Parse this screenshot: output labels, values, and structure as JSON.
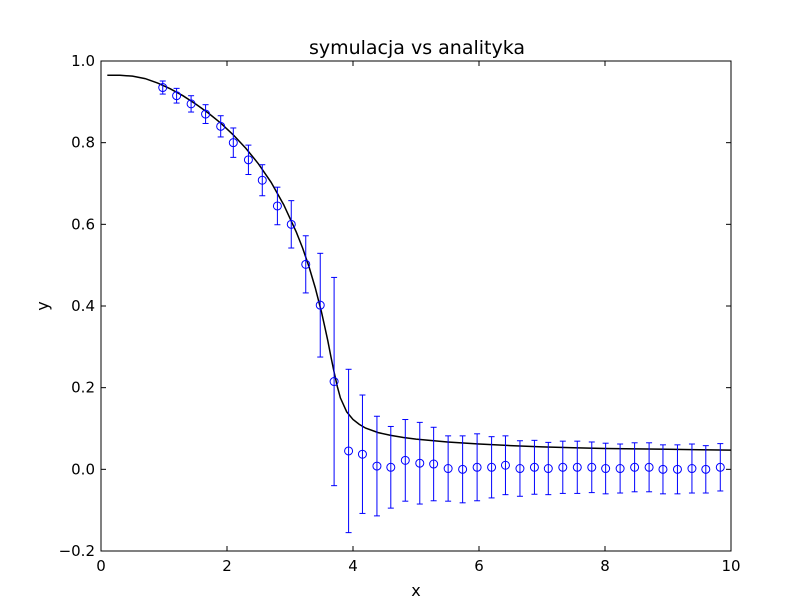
{
  "chart_data": {
    "type": "scatter",
    "title": "symulacja vs analityka",
    "xlabel": "x",
    "ylabel": "y",
    "xlim": [
      0,
      10
    ],
    "ylim": [
      -0.2,
      1.0
    ],
    "x_ticks": [
      0,
      2,
      4,
      6,
      8,
      10
    ],
    "x_tick_labels": [
      "0",
      "2",
      "4",
      "6",
      "8",
      "10"
    ],
    "y_ticks": [
      -0.2,
      0.0,
      0.2,
      0.4,
      0.6,
      0.8,
      1.0
    ],
    "y_tick_labels": [
      "−0.2",
      "0.0",
      "0.2",
      "0.4",
      "0.6",
      "0.8",
      "1.0"
    ],
    "grid": false,
    "legend": "none",
    "colors": {
      "simulation": "#0000ff",
      "analytic": "#000000"
    },
    "series": [
      {
        "kind": "line",
        "x": [
          0.1,
          0.3,
          0.5,
          0.7,
          0.9,
          1.1,
          1.3,
          1.5,
          1.7,
          1.9,
          2.1,
          2.3,
          2.5,
          2.7,
          2.9,
          3.1,
          3.2,
          3.3,
          3.4,
          3.5,
          3.55,
          3.6,
          3.65,
          3.7,
          3.75,
          3.8,
          3.9,
          4.0,
          4.1,
          4.2,
          4.4,
          4.6,
          4.8,
          5.0,
          5.5,
          6.0,
          6.5,
          7.0,
          7.5,
          8.0,
          8.5,
          9.0,
          9.5,
          10.0
        ],
        "y": [
          0.965,
          0.965,
          0.963,
          0.957,
          0.946,
          0.932,
          0.915,
          0.895,
          0.873,
          0.848,
          0.819,
          0.786,
          0.748,
          0.703,
          0.648,
          0.581,
          0.542,
          0.497,
          0.445,
          0.385,
          0.351,
          0.315,
          0.276,
          0.238,
          0.203,
          0.175,
          0.141,
          0.122,
          0.11,
          0.101,
          0.09,
          0.083,
          0.078,
          0.074,
          0.067,
          0.062,
          0.058,
          0.055,
          0.053,
          0.051,
          0.05,
          0.049,
          0.048,
          0.047
        ]
      },
      {
        "kind": "errorbar",
        "x": [
          0.98,
          1.2,
          1.43,
          1.66,
          1.9,
          2.1,
          2.34,
          2.56,
          2.8,
          3.02,
          3.25,
          3.48,
          3.7,
          3.93,
          4.15,
          4.38,
          4.6,
          4.83,
          5.06,
          5.28,
          5.51,
          5.74,
          5.97,
          6.2,
          6.42,
          6.65,
          6.88,
          7.1,
          7.33,
          7.56,
          7.79,
          8.01,
          8.24,
          8.47,
          8.7,
          8.92,
          9.15,
          9.38,
          9.6,
          9.83
        ],
        "y": [
          0.935,
          0.915,
          0.895,
          0.87,
          0.84,
          0.8,
          0.758,
          0.708,
          0.645,
          0.6,
          0.502,
          0.402,
          0.215,
          0.045,
          0.037,
          0.008,
          0.005,
          0.022,
          0.015,
          0.013,
          0.002,
          0.0,
          0.005,
          0.005,
          0.01,
          0.002,
          0.005,
          0.002,
          0.005,
          0.005,
          0.005,
          0.002,
          0.002,
          0.005,
          0.005,
          0.0,
          0.0,
          0.002,
          0.0,
          0.005
        ],
        "yerr": [
          0.016,
          0.018,
          0.02,
          0.023,
          0.026,
          0.036,
          0.036,
          0.038,
          0.046,
          0.058,
          0.07,
          0.127,
          0.255,
          0.2,
          0.145,
          0.122,
          0.1,
          0.1,
          0.1,
          0.09,
          0.08,
          0.082,
          0.082,
          0.075,
          0.072,
          0.068,
          0.066,
          0.064,
          0.064,
          0.064,
          0.062,
          0.062,
          0.06,
          0.06,
          0.06,
          0.06,
          0.06,
          0.06,
          0.058,
          0.058
        ]
      }
    ]
  }
}
